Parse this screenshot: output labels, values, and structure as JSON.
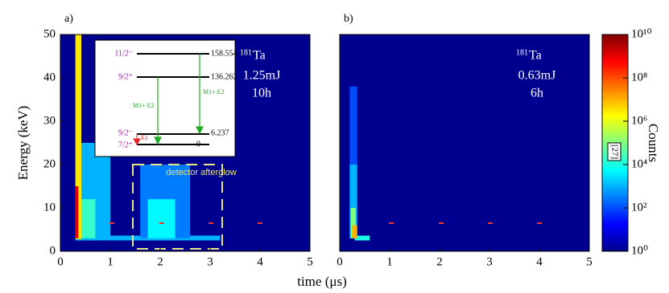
{
  "chart_data": [
    {
      "type": "heatmap",
      "panel_label": "a)",
      "isotope_mass": "181",
      "isotope": "Ta",
      "energy_label": "1.25mJ",
      "duration": "10h",
      "ylabel": "Energy (keV)",
      "xlabel": "time (μs)",
      "xlim": [
        0,
        5
      ],
      "xticks": [
        0,
        1,
        2,
        3,
        4,
        5
      ],
      "ylim": [
        0,
        50
      ],
      "yticks": [
        0,
        10,
        20,
        30,
        40,
        50
      ],
      "annotation": "detector afterglow",
      "level_scheme": {
        "levels": [
          {
            "spin": "11/2⁻",
            "energy": "158.554"
          },
          {
            "spin": "9/2⁺",
            "energy": "136.262"
          },
          {
            "spin": "9/2⁻",
            "energy": "6.237"
          },
          {
            "spin": "7/2⁺",
            "energy": "0"
          }
        ],
        "transitions": [
          "M1+ E2",
          "M1+ E2",
          "E1"
        ]
      },
      "cells": [
        {
          "x": [
            0,
            5
          ],
          "y": [
            0,
            50
          ],
          "value": 1
        },
        {
          "x": [
            0.3,
            3.2
          ],
          "y": [
            2.5,
            3.6
          ],
          "value": 1000
        },
        {
          "x": [
            1.6,
            2.6
          ],
          "y": [
            3,
            20
          ],
          "value": 300
        },
        {
          "x": [
            1.75,
            2.3
          ],
          "y": [
            3,
            12
          ],
          "value": 5000
        },
        {
          "x": [
            0.4,
            1.0
          ],
          "y": [
            3,
            25
          ],
          "value": 1000
        },
        {
          "x": [
            0.4,
            0.7
          ],
          "y": [
            3,
            12
          ],
          "value": 20000
        },
        {
          "x": [
            0.3,
            0.42
          ],
          "y": [
            2.8,
            50
          ],
          "value": 3000000
        },
        {
          "x": [
            0.3,
            0.36
          ],
          "y": [
            3,
            15
          ],
          "value": 1000000000
        }
      ]
    },
    {
      "type": "heatmap",
      "panel_label": "b)",
      "isotope_mass": "181",
      "isotope": "Ta",
      "energy_label": "0.63mJ",
      "duration": "6h",
      "xlim": [
        0,
        5
      ],
      "xticks": [
        0,
        1,
        2,
        3,
        4,
        5
      ],
      "ylim": [
        0,
        50
      ],
      "cells": [
        {
          "x": [
            0,
            5
          ],
          "y": [
            0,
            50
          ],
          "value": 1
        },
        {
          "x": [
            0.2,
            0.35
          ],
          "y": [
            3,
            38
          ],
          "value": 100
        },
        {
          "x": [
            0.2,
            0.35
          ],
          "y": [
            3,
            20
          ],
          "value": 1000
        },
        {
          "x": [
            0.22,
            0.32
          ],
          "y": [
            3,
            10
          ],
          "value": 100000
        },
        {
          "x": [
            0.3,
            0.6
          ],
          "y": [
            2.5,
            3.6
          ],
          "value": 10000
        },
        {
          "x": [
            0.25,
            0.35
          ],
          "y": [
            3,
            6
          ],
          "value": 10000000
        }
      ]
    },
    {
      "type": "colorbar",
      "label": "Counts",
      "annotation": "[27]",
      "log": true,
      "clim": [
        1,
        10000000000
      ],
      "cticks": [
        {
          "value": 1,
          "label": "10⁰"
        },
        {
          "value": 100,
          "label": "10²"
        },
        {
          "value": 10000,
          "label": "10⁴"
        },
        {
          "value": 1000000,
          "label": "10⁶"
        },
        {
          "value": 100000000,
          "label": "10⁸"
        },
        {
          "value": 10000000000,
          "label": "10¹⁰"
        }
      ]
    }
  ]
}
